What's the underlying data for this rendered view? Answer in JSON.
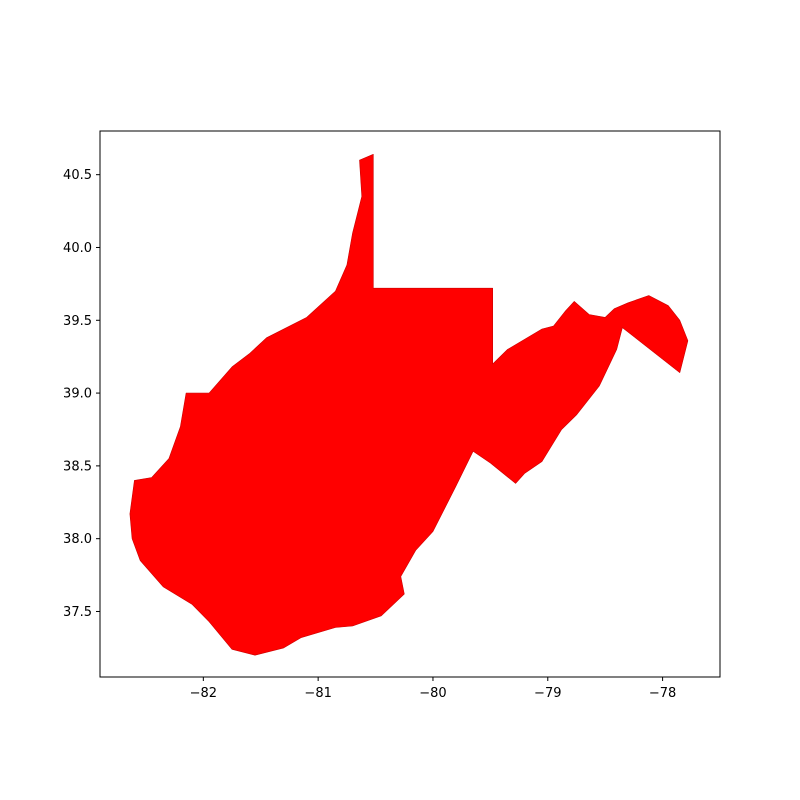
{
  "chart_data": {
    "type": "map",
    "region": "West Virginia",
    "fill_color": "#ff0000",
    "edge_color": "#cc0000",
    "xlim": [
      -82.9,
      -77.5
    ],
    "ylim": [
      37.05,
      40.8
    ],
    "x_ticks": [
      {
        "value": -82,
        "label": "−82"
      },
      {
        "value": -81,
        "label": "−81"
      },
      {
        "value": -80,
        "label": "−80"
      },
      {
        "value": -79,
        "label": "−79"
      },
      {
        "value": -78,
        "label": "−78"
      }
    ],
    "y_ticks": [
      {
        "value": 37.5,
        "label": "37.5"
      },
      {
        "value": 38.0,
        "label": "38.0"
      },
      {
        "value": 38.5,
        "label": "38.5"
      },
      {
        "value": 39.0,
        "label": "39.0"
      },
      {
        "value": 39.5,
        "label": "39.5"
      },
      {
        "value": 40.0,
        "label": "40.0"
      },
      {
        "value": 40.5,
        "label": "40.5"
      }
    ],
    "outline": [
      [
        -80.52,
        40.64
      ],
      [
        -80.52,
        39.72
      ],
      [
        -79.48,
        39.72
      ],
      [
        -79.48,
        39.2
      ],
      [
        -79.35,
        39.3
      ],
      [
        -79.05,
        39.44
      ],
      [
        -78.95,
        39.46
      ],
      [
        -78.85,
        39.56
      ],
      [
        -78.77,
        39.63
      ],
      [
        -78.64,
        39.54
      ],
      [
        -78.5,
        39.52
      ],
      [
        -78.42,
        39.58
      ],
      [
        -78.3,
        39.62
      ],
      [
        -78.12,
        39.67
      ],
      [
        -77.95,
        39.6
      ],
      [
        -77.85,
        39.5
      ],
      [
        -77.78,
        39.36
      ],
      [
        -77.85,
        39.14
      ],
      [
        -78.35,
        39.45
      ],
      [
        -78.4,
        39.3
      ],
      [
        -78.55,
        39.05
      ],
      [
        -78.75,
        38.85
      ],
      [
        -78.88,
        38.75
      ],
      [
        -79.05,
        38.53
      ],
      [
        -79.2,
        38.45
      ],
      [
        -79.28,
        38.38
      ],
      [
        -79.5,
        38.52
      ],
      [
        -79.65,
        38.6
      ],
      [
        -79.8,
        38.36
      ],
      [
        -80.0,
        38.05
      ],
      [
        -80.15,
        37.92
      ],
      [
        -80.28,
        37.74
      ],
      [
        -80.25,
        37.62
      ],
      [
        -80.45,
        37.47
      ],
      [
        -80.7,
        37.4
      ],
      [
        -80.85,
        37.39
      ],
      [
        -81.15,
        37.32
      ],
      [
        -81.3,
        37.25
      ],
      [
        -81.55,
        37.2
      ],
      [
        -81.75,
        37.24
      ],
      [
        -81.95,
        37.43
      ],
      [
        -82.1,
        37.55
      ],
      [
        -82.35,
        37.67
      ],
      [
        -82.55,
        37.85
      ],
      [
        -82.62,
        38.0
      ],
      [
        -82.64,
        38.17
      ],
      [
        -82.6,
        38.4
      ],
      [
        -82.45,
        38.42
      ],
      [
        -82.3,
        38.55
      ],
      [
        -82.2,
        38.77
      ],
      [
        -82.15,
        39.0
      ],
      [
        -81.95,
        39.0
      ],
      [
        -81.75,
        39.18
      ],
      [
        -81.6,
        39.27
      ],
      [
        -81.45,
        39.38
      ],
      [
        -81.1,
        39.52
      ],
      [
        -80.85,
        39.7
      ],
      [
        -80.75,
        39.88
      ],
      [
        -80.7,
        40.1
      ],
      [
        -80.62,
        40.35
      ],
      [
        -80.64,
        40.6
      ]
    ]
  }
}
